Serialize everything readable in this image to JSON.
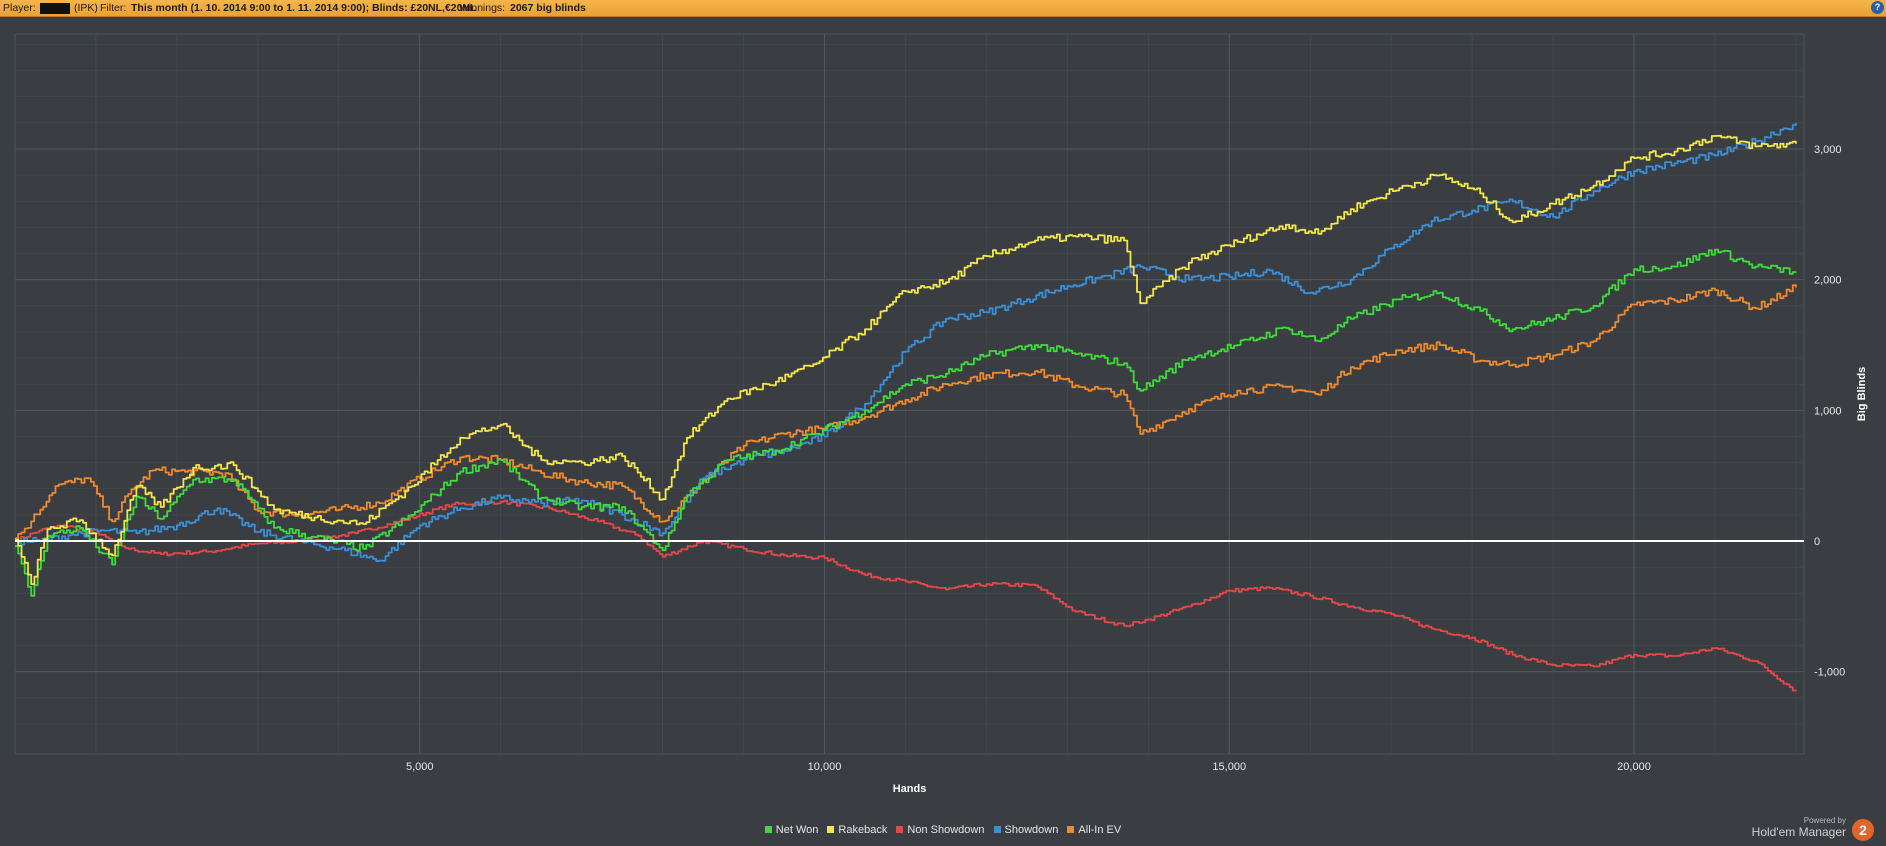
{
  "header": {
    "player_label": "Player:",
    "player_site": "(IPK)",
    "filter_label": "Filter:",
    "filter_value": "This month (1. 10. 2014 9:00 to 1. 11. 2014 9:00); Blinds: £20NL,€20NL",
    "winnings_label": "Winnings:",
    "winnings_value": "2067 big blinds",
    "help_icon": "?"
  },
  "colors": {
    "background": "#3a3e42",
    "plot_background": "#3a3e42",
    "grid": "#54595e",
    "zero_line": "#ffffff",
    "net_won": "#3ddc3a",
    "rakeback": "#f3e64a",
    "non_showdown": "#e54848",
    "showdown": "#3a8fd8",
    "all_in_ev": "#f08a2c"
  },
  "chart_data": {
    "type": "line",
    "xlabel": "Hands",
    "ylabel": "Big Blinds",
    "xlim": [
      0,
      22100
    ],
    "ylim": [
      -1630,
      3880
    ],
    "xticks": [
      5000,
      10000,
      15000,
      20000
    ],
    "xtick_labels": [
      "5,000",
      "10,000",
      "15,000",
      "20,000"
    ],
    "yticks": [
      -1000,
      0,
      1000,
      2000,
      3000
    ],
    "ytick_labels": [
      "-1,000",
      "0",
      "1,000",
      "2,000",
      "3,000"
    ],
    "grid": true,
    "legend_position": "bottom",
    "series": [
      {
        "name": "Net Won",
        "color": "#3ddc3a",
        "x": [
          0,
          200,
          400,
          800,
          1200,
          1500,
          1800,
          2200,
          2700,
          3000,
          3200,
          3700,
          4300,
          4900,
          5500,
          6000,
          6500,
          7000,
          7500,
          8000,
          8300,
          8800,
          9400,
          9900,
          10500,
          11000,
          11500,
          12000,
          12600,
          13100,
          13700,
          13900,
          14500,
          15100,
          15700,
          16100,
          16500,
          17100,
          17600,
          18100,
          18500,
          19000,
          19500,
          20000,
          20500,
          21000,
          21500,
          22000
        ],
        "y": [
          -40,
          -420,
          40,
          100,
          -180,
          340,
          170,
          470,
          470,
          250,
          100,
          30,
          -60,
          200,
          530,
          620,
          330,
          260,
          260,
          -70,
          350,
          620,
          690,
          820,
          1000,
          1200,
          1280,
          1420,
          1500,
          1430,
          1360,
          1150,
          1400,
          1500,
          1630,
          1530,
          1700,
          1850,
          1900,
          1760,
          1620,
          1700,
          1800,
          2080,
          2100,
          2230,
          2100,
          2060
        ]
      },
      {
        "name": "Rakeback",
        "color": "#f3e64a",
        "x": [
          0,
          200,
          400,
          800,
          1200,
          1500,
          1800,
          2200,
          2700,
          3000,
          3200,
          3700,
          4300,
          4900,
          5500,
          6000,
          6500,
          7000,
          7500,
          8000,
          8300,
          8800,
          9400,
          9900,
          10500,
          11000,
          11500,
          12000,
          12600,
          13100,
          13700,
          13900,
          14500,
          15100,
          15700,
          16100,
          16500,
          17100,
          17600,
          18100,
          18500,
          19000,
          19500,
          20000,
          20500,
          21000,
          21500,
          22000
        ],
        "y": [
          10,
          -330,
          90,
          160,
          -110,
          420,
          260,
          560,
          580,
          380,
          240,
          180,
          130,
          420,
          790,
          890,
          620,
          600,
          650,
          320,
          790,
          1090,
          1220,
          1360,
          1620,
          1910,
          1980,
          2180,
          2300,
          2330,
          2300,
          1820,
          2130,
          2290,
          2420,
          2350,
          2540,
          2700,
          2800,
          2660,
          2440,
          2580,
          2720,
          2930,
          2980,
          3100,
          3020,
          3040
        ]
      },
      {
        "name": "Non Showdown",
        "color": "#e54848",
        "x": [
          0,
          300,
          600,
          1000,
          1400,
          1800,
          2400,
          3000,
          3600,
          4200,
          4800,
          5400,
          6000,
          6600,
          7200,
          7700,
          8000,
          8500,
          9000,
          9500,
          10000,
          10500,
          11000,
          11500,
          12000,
          12600,
          13100,
          13700,
          14000,
          14500,
          15000,
          15500,
          16000,
          16500,
          17000,
          17500,
          18000,
          18500,
          19000,
          19500,
          20000,
          20500,
          21000,
          21500,
          22000
        ],
        "y": [
          0,
          80,
          120,
          60,
          -60,
          -100,
          -80,
          -20,
          0,
          60,
          160,
          280,
          300,
          250,
          150,
          40,
          -120,
          0,
          -60,
          -110,
          -130,
          -260,
          -310,
          -370,
          -330,
          -340,
          -540,
          -650,
          -600,
          -500,
          -380,
          -360,
          -420,
          -500,
          -560,
          -670,
          -740,
          -870,
          -950,
          -960,
          -870,
          -880,
          -820,
          -920,
          -1150
        ]
      },
      {
        "name": "Showdown",
        "color": "#3a8fd8",
        "x": [
          0,
          300,
          700,
          1100,
          1500,
          2000,
          2500,
          3000,
          3500,
          4000,
          4500,
          5000,
          5500,
          6000,
          6500,
          7000,
          7500,
          8000,
          8500,
          9000,
          9500,
          10000,
          10500,
          11000,
          11500,
          12000,
          12500,
          13000,
          13500,
          13900,
          14500,
          15000,
          15500,
          16000,
          16500,
          17000,
          17500,
          18000,
          18500,
          19000,
          19500,
          20000,
          20500,
          21000,
          21500,
          22000
        ],
        "y": [
          0,
          0,
          50,
          80,
          60,
          120,
          250,
          70,
          0,
          -60,
          -150,
          120,
          250,
          330,
          290,
          310,
          200,
          60,
          480,
          620,
          690,
          800,
          1050,
          1450,
          1700,
          1750,
          1850,
          1950,
          2030,
          2100,
          2000,
          2020,
          2070,
          1900,
          2000,
          2240,
          2450,
          2530,
          2600,
          2480,
          2680,
          2830,
          2890,
          2950,
          3060,
          3200
        ]
      },
      {
        "name": "All-In EV",
        "color": "#f08a2c",
        "x": [
          0,
          200,
          500,
          900,
          1200,
          1400,
          1700,
          2100,
          2600,
          3000,
          3500,
          4000,
          4500,
          5000,
          5500,
          6000,
          6500,
          7000,
          7500,
          8000,
          8500,
          9000,
          9500,
          10000,
          10500,
          11000,
          11500,
          12000,
          12600,
          13100,
          13700,
          13900,
          14500,
          15100,
          15700,
          16100,
          16500,
          17100,
          17600,
          18100,
          18500,
          19000,
          19500,
          20000,
          20500,
          21000,
          21500,
          22000
        ],
        "y": [
          20,
          150,
          420,
          480,
          150,
          360,
          540,
          530,
          520,
          230,
          200,
          240,
          290,
          480,
          640,
          620,
          520,
          450,
          420,
          150,
          460,
          730,
          820,
          860,
          950,
          1080,
          1200,
          1270,
          1300,
          1190,
          1120,
          820,
          1010,
          1150,
          1180,
          1120,
          1330,
          1460,
          1500,
          1380,
          1350,
          1420,
          1530,
          1810,
          1840,
          1920,
          1780,
          1940
        ]
      }
    ]
  },
  "legend": {
    "items": [
      {
        "label": "Net Won",
        "color": "#3ddc3a"
      },
      {
        "label": "Rakeback",
        "color": "#f3e64a"
      },
      {
        "label": "Non Showdown",
        "color": "#e54848"
      },
      {
        "label": "Showdown",
        "color": "#3a8fd8"
      },
      {
        "label": "All-In EV",
        "color": "#f08a2c"
      }
    ]
  },
  "branding": {
    "powered_by": "Powered by",
    "product": "Hold'em Manager",
    "logo_glyph": "2"
  }
}
